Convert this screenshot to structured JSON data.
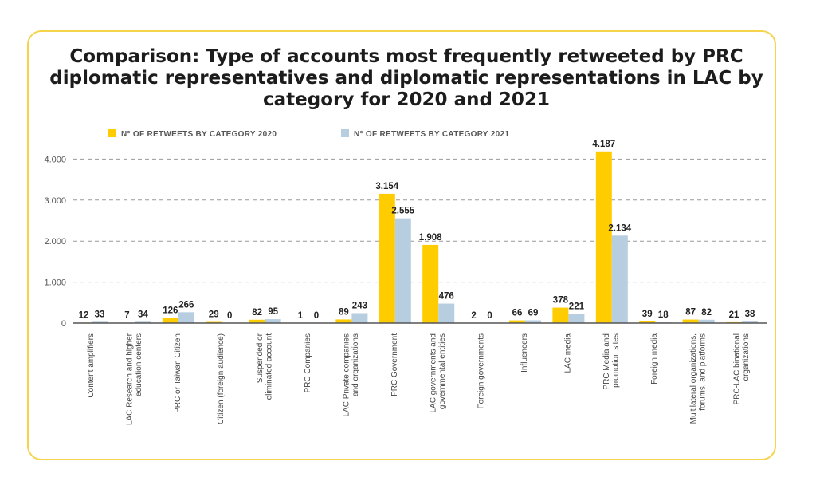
{
  "chart_data": {
    "type": "bar",
    "title": "Comparison: Type of accounts most frequently retweeted by PRC diplomatic representatives and diplomatic representations in LAC by category for 2020 and 2021",
    "categories": [
      [
        "Content amplifiers"
      ],
      [
        "LAC Research and higher",
        "education centers"
      ],
      [
        "PRC or Taiwan Citizen"
      ],
      [
        "Citizen (foreign audience)"
      ],
      [
        "Suspended or",
        "eliminated account"
      ],
      [
        "PRC Companies"
      ],
      [
        "LAC Private companies",
        "and organizations"
      ],
      [
        "PRC Government"
      ],
      [
        "LAC governments and",
        "governmental entities"
      ],
      [
        "Foreign governments"
      ],
      [
        "Influencers"
      ],
      [
        "LAC media"
      ],
      [
        "PRC Media and",
        "promotion sites"
      ],
      [
        "Foreign media"
      ],
      [
        "Multilateral organizations,",
        "forums, and platforms"
      ],
      [
        "PRC-LAC binational",
        "organizations"
      ]
    ],
    "series": [
      {
        "name": "N° OF RETWEETS BY CATEGORY 2020",
        "color": "#ffcc00",
        "values": [
          12,
          7,
          126,
          29,
          82,
          1,
          89,
          3154,
          1908,
          2,
          66,
          378,
          4187,
          39,
          87,
          21
        ],
        "labels": [
          "12",
          "7",
          "126",
          "29",
          "82",
          "1",
          "89",
          "3.154",
          "1.908",
          "2",
          "66",
          "378",
          "4.187",
          "39",
          "87",
          "21"
        ]
      },
      {
        "name": "N° OF RETWEETS BY CATEGORY 2021",
        "color": "#b7cde0",
        "values": [
          33,
          34,
          266,
          0,
          95,
          0,
          243,
          2555,
          476,
          0,
          69,
          221,
          2134,
          18,
          82,
          38
        ],
        "labels": [
          "33",
          "34",
          "266",
          "0",
          "95",
          "0",
          "243",
          "2.555",
          "476",
          "0",
          "69",
          "221",
          "2.134",
          "18",
          "82",
          "38"
        ]
      }
    ],
    "yticks": [
      0,
      1000,
      2000,
      3000,
      4000
    ],
    "ytick_labels": [
      "0",
      "1.000",
      "2.000",
      "3.000",
      "4.000"
    ],
    "ylim": [
      0,
      4400
    ],
    "grid": true,
    "legend_position": "top-left"
  }
}
